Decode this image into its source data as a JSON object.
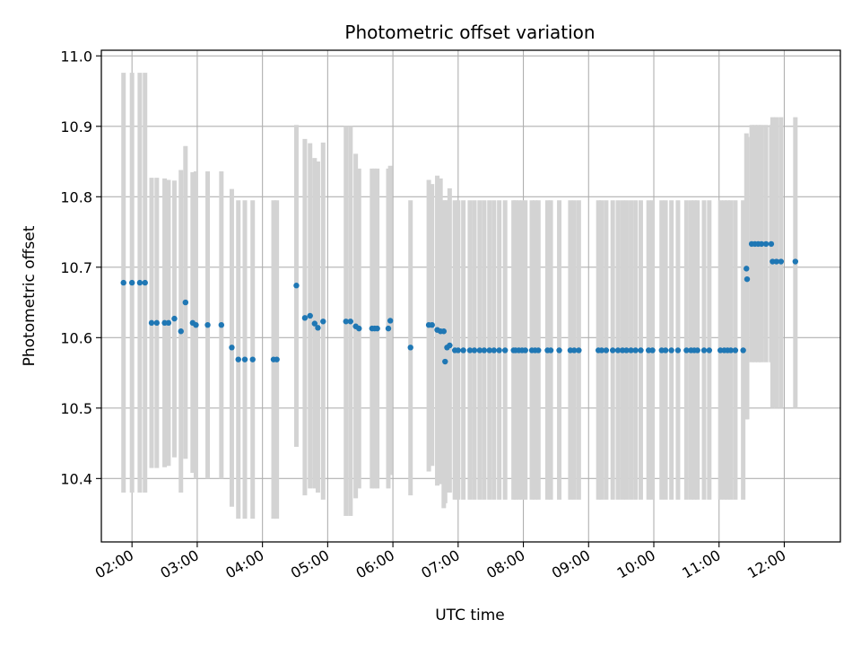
{
  "chart_data": {
    "type": "scatter",
    "title": "Photometric offset variation",
    "xlabel": "UTC time",
    "ylabel": "Photometric offset",
    "xlim_hours": [
      1.53,
      12.86
    ],
    "ylim": [
      10.31,
      11.008
    ],
    "grid": true,
    "colors": {
      "points": "#1f77b4",
      "errorbars": "#d3d3d3",
      "grid": "#b0b0b0"
    },
    "xticks": [
      {
        "value": 2,
        "label": "02:00"
      },
      {
        "value": 3,
        "label": "03:00"
      },
      {
        "value": 4,
        "label": "04:00"
      },
      {
        "value": 5,
        "label": "05:00"
      },
      {
        "value": 6,
        "label": "06:00"
      },
      {
        "value": 7,
        "label": "07:00"
      },
      {
        "value": 8,
        "label": "08:00"
      },
      {
        "value": 9,
        "label": "09:00"
      },
      {
        "value": 10,
        "label": "10:00"
      },
      {
        "value": 11,
        "label": "11:00"
      },
      {
        "value": 12,
        "label": "12:00"
      }
    ],
    "yticks": [
      {
        "value": 10.4,
        "label": "10.4"
      },
      {
        "value": 10.5,
        "label": "10.5"
      },
      {
        "value": 10.6,
        "label": "10.6"
      },
      {
        "value": 10.7,
        "label": "10.7"
      },
      {
        "value": 10.8,
        "label": "10.8"
      },
      {
        "value": 10.9,
        "label": "10.9"
      },
      {
        "value": 11.0,
        "label": "11.0"
      }
    ],
    "points": [
      [
        1.87,
        10.678,
        10.38,
        10.976
      ],
      [
        2.0,
        10.678,
        10.38,
        10.976
      ],
      [
        2.12,
        10.678,
        10.38,
        10.976
      ],
      [
        2.2,
        10.678,
        10.38,
        10.976
      ],
      [
        2.3,
        10.621,
        10.415,
        10.827
      ],
      [
        2.38,
        10.621,
        10.415,
        10.827
      ],
      [
        2.5,
        10.621,
        10.416,
        10.826
      ],
      [
        2.56,
        10.621,
        10.418,
        10.824
      ],
      [
        2.65,
        10.627,
        10.43,
        10.823
      ],
      [
        2.75,
        10.609,
        10.38,
        10.838
      ],
      [
        2.82,
        10.65,
        10.428,
        10.872
      ],
      [
        2.93,
        10.621,
        10.408,
        10.835
      ],
      [
        2.98,
        10.618,
        10.4,
        10.836
      ],
      [
        3.16,
        10.618,
        10.4,
        10.836
      ],
      [
        3.37,
        10.618,
        10.4,
        10.836
      ],
      [
        3.53,
        10.586,
        10.36,
        10.811
      ],
      [
        3.63,
        10.569,
        10.343,
        10.795
      ],
      [
        3.73,
        10.569,
        10.343,
        10.795
      ],
      [
        3.85,
        10.569,
        10.343,
        10.795
      ],
      [
        4.17,
        10.569,
        10.343,
        10.795
      ],
      [
        4.22,
        10.569,
        10.343,
        10.795
      ],
      [
        4.52,
        10.674,
        10.445,
        10.902
      ],
      [
        4.65,
        10.628,
        10.376,
        10.882
      ],
      [
        4.73,
        10.631,
        10.386,
        10.876
      ],
      [
        4.8,
        10.62,
        10.386,
        10.855
      ],
      [
        4.85,
        10.614,
        10.38,
        10.85
      ],
      [
        4.93,
        10.623,
        10.37,
        10.877
      ],
      [
        5.28,
        10.623,
        10.347,
        10.9
      ],
      [
        5.35,
        10.623,
        10.347,
        10.9
      ],
      [
        5.43,
        10.616,
        10.372,
        10.861
      ],
      [
        5.48,
        10.613,
        10.386,
        10.84
      ],
      [
        5.68,
        10.613,
        10.386,
        10.84
      ],
      [
        5.72,
        10.613,
        10.386,
        10.84
      ],
      [
        5.76,
        10.613,
        10.386,
        10.84
      ],
      [
        5.93,
        10.613,
        10.386,
        10.84
      ],
      [
        5.96,
        10.624,
        10.405,
        10.844
      ],
      [
        6.27,
        10.586,
        10.376,
        10.795
      ],
      [
        6.55,
        10.618,
        10.41,
        10.824
      ],
      [
        6.6,
        10.618,
        10.418,
        10.818
      ],
      [
        6.68,
        10.611,
        10.39,
        10.83
      ],
      [
        6.73,
        10.609,
        10.392,
        10.826
      ],
      [
        6.78,
        10.609,
        10.358,
        10.795
      ],
      [
        6.8,
        10.566,
        10.365,
        10.795
      ],
      [
        6.83,
        10.586,
        10.38,
        10.795
      ],
      [
        6.87,
        10.589,
        10.38,
        10.812
      ],
      [
        6.95,
        10.582,
        10.37,
        10.795
      ],
      [
        7.0,
        10.582,
        10.37,
        10.795
      ],
      [
        7.08,
        10.582,
        10.37,
        10.795
      ],
      [
        7.18,
        10.582,
        10.37,
        10.795
      ],
      [
        7.25,
        10.582,
        10.37,
        10.795
      ],
      [
        7.33,
        10.582,
        10.37,
        10.795
      ],
      [
        7.4,
        10.582,
        10.37,
        10.795
      ],
      [
        7.48,
        10.582,
        10.37,
        10.795
      ],
      [
        7.55,
        10.582,
        10.37,
        10.795
      ],
      [
        7.63,
        10.582,
        10.37,
        10.795
      ],
      [
        7.72,
        10.582,
        10.37,
        10.795
      ],
      [
        7.85,
        10.582,
        10.37,
        10.795
      ],
      [
        7.88,
        10.582,
        10.37,
        10.795
      ],
      [
        7.93,
        10.582,
        10.37,
        10.795
      ],
      [
        7.98,
        10.582,
        10.37,
        10.795
      ],
      [
        8.03,
        10.582,
        10.37,
        10.795
      ],
      [
        8.13,
        10.582,
        10.37,
        10.795
      ],
      [
        8.18,
        10.582,
        10.37,
        10.795
      ],
      [
        8.23,
        10.582,
        10.37,
        10.795
      ],
      [
        8.37,
        10.582,
        10.37,
        10.795
      ],
      [
        8.42,
        10.582,
        10.37,
        10.795
      ],
      [
        8.55,
        10.582,
        10.37,
        10.795
      ],
      [
        8.72,
        10.582,
        10.37,
        10.795
      ],
      [
        8.78,
        10.582,
        10.37,
        10.795
      ],
      [
        8.85,
        10.582,
        10.37,
        10.795
      ],
      [
        9.15,
        10.582,
        10.37,
        10.795
      ],
      [
        9.2,
        10.582,
        10.37,
        10.795
      ],
      [
        9.27,
        10.582,
        10.37,
        10.795
      ],
      [
        9.37,
        10.582,
        10.37,
        10.795
      ],
      [
        9.45,
        10.582,
        10.37,
        10.795
      ],
      [
        9.52,
        10.582,
        10.37,
        10.795
      ],
      [
        9.58,
        10.582,
        10.37,
        10.795
      ],
      [
        9.65,
        10.582,
        10.37,
        10.795
      ],
      [
        9.72,
        10.582,
        10.37,
        10.795
      ],
      [
        9.8,
        10.582,
        10.37,
        10.795
      ],
      [
        9.92,
        10.582,
        10.37,
        10.795
      ],
      [
        9.98,
        10.582,
        10.37,
        10.795
      ],
      [
        10.12,
        10.582,
        10.37,
        10.795
      ],
      [
        10.18,
        10.582,
        10.37,
        10.795
      ],
      [
        10.27,
        10.582,
        10.37,
        10.795
      ],
      [
        10.37,
        10.582,
        10.37,
        10.795
      ],
      [
        10.5,
        10.582,
        10.37,
        10.795
      ],
      [
        10.57,
        10.582,
        10.37,
        10.795
      ],
      [
        10.62,
        10.582,
        10.37,
        10.795
      ],
      [
        10.67,
        10.582,
        10.37,
        10.795
      ],
      [
        10.77,
        10.582,
        10.37,
        10.795
      ],
      [
        10.85,
        10.582,
        10.37,
        10.795
      ],
      [
        11.02,
        10.582,
        10.37,
        10.795
      ],
      [
        11.08,
        10.582,
        10.37,
        10.795
      ],
      [
        11.13,
        10.582,
        10.37,
        10.795
      ],
      [
        11.18,
        10.582,
        10.37,
        10.795
      ],
      [
        11.25,
        10.582,
        10.37,
        10.795
      ],
      [
        11.37,
        10.582,
        10.37,
        10.795
      ],
      [
        11.42,
        10.698,
        10.484,
        10.89
      ],
      [
        11.43,
        10.683,
        10.484,
        10.885
      ],
      [
        11.5,
        10.733,
        10.565,
        10.902
      ],
      [
        11.55,
        10.733,
        10.565,
        10.902
      ],
      [
        11.6,
        10.733,
        10.565,
        10.902
      ],
      [
        11.65,
        10.733,
        10.565,
        10.902
      ],
      [
        11.72,
        10.733,
        10.565,
        10.902
      ],
      [
        11.8,
        10.733,
        10.565,
        10.902
      ],
      [
        11.82,
        10.708,
        10.5,
        10.913
      ],
      [
        11.88,
        10.708,
        10.5,
        10.913
      ],
      [
        11.95,
        10.708,
        10.5,
        10.913
      ],
      [
        12.17,
        10.708,
        10.5,
        10.913
      ]
    ]
  }
}
